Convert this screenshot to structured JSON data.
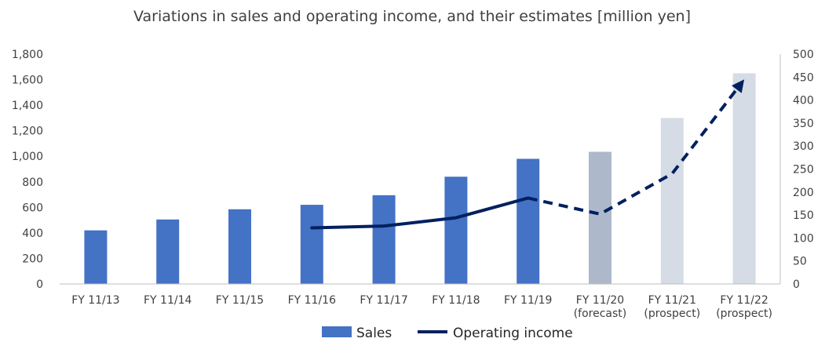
{
  "chart_data": {
    "type": "bar+line",
    "title": "Variations in sales and operating income, and their estimates [million yen]",
    "categories": [
      [
        "FY 11/13"
      ],
      [
        "FY 11/14"
      ],
      [
        "FY 11/15"
      ],
      [
        "FY 11/16"
      ],
      [
        "FY 11/17"
      ],
      [
        "FY 11/18"
      ],
      [
        "FY 11/19"
      ],
      [
        "FY 11/20",
        "(forecast)"
      ],
      [
        "FY 11/21",
        "(prospect)"
      ],
      [
        "FY 11/22",
        "(prospect)"
      ]
    ],
    "bar_colors": [
      "#4472C4",
      "#4472C4",
      "#4472C4",
      "#4472C4",
      "#4472C4",
      "#4472C4",
      "#4472C4",
      "#ADB9CA",
      "#D6DCE5",
      "#D6DCE5"
    ],
    "series": [
      {
        "name": "Sales",
        "type": "bar",
        "axis": "left",
        "color": "#4472C4",
        "values": [
          420,
          505,
          585,
          620,
          695,
          840,
          980,
          1035,
          1300,
          1650
        ]
      },
      {
        "name": "Operating income",
        "type": "line",
        "axis": "right",
        "color": "#002060",
        "values": [
          null,
          null,
          null,
          122,
          126,
          144,
          187,
          152,
          240,
          445
        ],
        "actual_through_index": 6,
        "dashed_after": "FY 11/19",
        "end_marker": "arrow"
      }
    ],
    "y_left": {
      "min": 0,
      "max": 1800,
      "step": 200,
      "ticks": [
        "0",
        "200",
        "400",
        "600",
        "800",
        "1,000",
        "1,200",
        "1,400",
        "1,600",
        "1,800"
      ]
    },
    "y_right": {
      "min": 0,
      "max": 500,
      "step": 50,
      "ticks": [
        "0",
        "50",
        "100",
        "150",
        "200",
        "250",
        "300",
        "350",
        "400",
        "450",
        "500"
      ]
    },
    "grid": false,
    "legend_position": "bottom"
  }
}
